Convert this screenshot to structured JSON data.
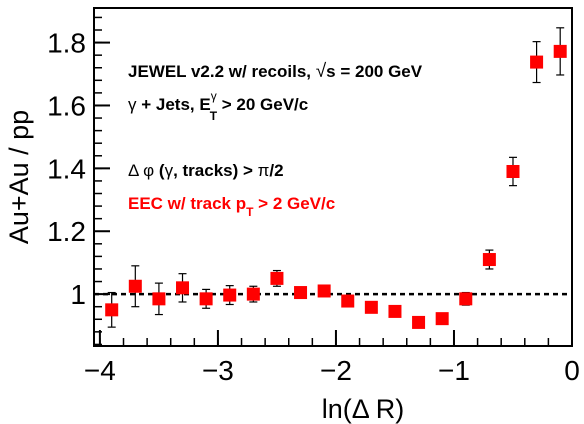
{
  "chart_data": {
    "type": "scatter",
    "xlabel": "ln(Δ R)",
    "ylabel": "Au+Au / pp",
    "xlim": [
      -4.05,
      0.0
    ],
    "ylim": [
      0.835,
      1.91
    ],
    "x_ticks": [
      "−4",
      "−3",
      "−2",
      "−1",
      "0"
    ],
    "y_ticks": [
      "1",
      "1.2",
      "1.4",
      "1.6",
      "1.8"
    ],
    "x_tick_values": [
      -4,
      -3,
      -2,
      -1,
      0
    ],
    "y_tick_values": [
      1.0,
      1.2,
      1.4,
      1.6,
      1.8
    ],
    "reference_line": {
      "y": 1.0,
      "style": "dashed"
    },
    "annotations": [
      {
        "text": "JEWEL v2.2 w/ recoils, √s = 200 GeV",
        "color": "#000000"
      },
      {
        "text": "γ + Jets, E_T^γ > 20 GeV/c",
        "color": "#000000"
      },
      {
        "text": "Δ φ (γ, tracks) > π/2",
        "color": "#000000"
      },
      {
        "text": "EEC w/ track p_T > 2 GeV/c",
        "color": "#ff0000"
      }
    ],
    "marker_color": "#ff0000",
    "series": [
      {
        "x": [
          -3.9,
          -3.7,
          -3.5,
          -3.3,
          -3.1,
          -2.9,
          -2.7,
          -2.5,
          -2.3,
          -2.1,
          -1.9,
          -1.7,
          -1.5,
          -1.3,
          -1.1,
          -0.9,
          -0.7,
          -0.5,
          -0.3,
          -0.1
        ],
        "y": [
          0.95,
          1.025,
          0.985,
          1.02,
          0.985,
          0.997,
          1.0,
          1.05,
          1.005,
          1.01,
          0.978,
          0.958,
          0.945,
          0.91,
          0.922,
          0.985,
          1.11,
          1.39,
          1.738,
          1.772
        ],
        "err": [
          0.055,
          0.065,
          0.05,
          0.045,
          0.03,
          0.03,
          0.025,
          0.025,
          0.015,
          0.015,
          0.012,
          0.01,
          0.012,
          0.012,
          0.015,
          0.02,
          0.03,
          0.045,
          0.065,
          0.075
        ]
      }
    ]
  }
}
